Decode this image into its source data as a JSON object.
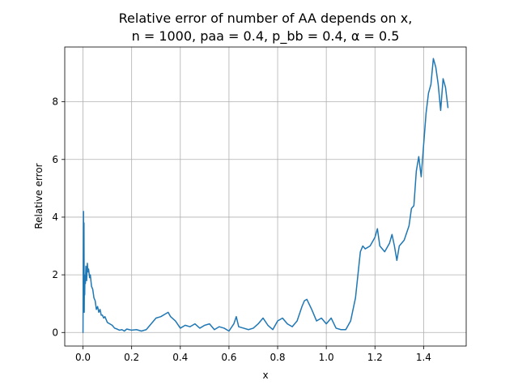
{
  "chart_data": {
    "type": "line",
    "title_line1": "Relative error of number of AA depends on x,",
    "title_line2": "n = 1000, paa = 0.4, p_bb = 0.4, α = 0.5",
    "xlabel": "x",
    "ylabel": "Relative error",
    "xlim": [
      -0.075,
      1.575
    ],
    "ylim": [
      -0.47,
      9.9
    ],
    "xticks": [
      0.0,
      0.2,
      0.4,
      0.6,
      0.8,
      1.0,
      1.2,
      1.4
    ],
    "xtick_labels": [
      "0.0",
      "0.2",
      "0.4",
      "0.6",
      "0.8",
      "1.0",
      "1.2",
      "1.4"
    ],
    "yticks": [
      0,
      2,
      4,
      6,
      8
    ],
    "ytick_labels": [
      "0",
      "2",
      "4",
      "6",
      "8"
    ],
    "grid": true,
    "line_color": "#1f77b4",
    "series": [
      {
        "x": [
          0.0,
          0.001,
          0.002,
          0.003,
          0.004,
          0.005,
          0.006,
          0.007,
          0.008,
          0.01,
          0.012,
          0.015,
          0.018,
          0.02,
          0.023,
          0.027,
          0.03,
          0.035,
          0.04,
          0.045,
          0.05,
          0.055,
          0.06,
          0.065,
          0.07,
          0.075,
          0.08,
          0.085,
          0.09,
          0.1,
          0.11,
          0.12,
          0.13,
          0.14,
          0.15,
          0.16,
          0.17,
          0.18,
          0.19,
          0.2,
          0.22,
          0.24,
          0.26,
          0.28,
          0.3,
          0.32,
          0.34,
          0.35,
          0.36,
          0.38,
          0.4,
          0.42,
          0.44,
          0.46,
          0.48,
          0.5,
          0.52,
          0.54,
          0.56,
          0.58,
          0.6,
          0.62,
          0.63,
          0.64,
          0.66,
          0.68,
          0.7,
          0.72,
          0.74,
          0.76,
          0.78,
          0.8,
          0.82,
          0.84,
          0.86,
          0.88,
          0.9,
          0.91,
          0.92,
          0.94,
          0.96,
          0.98,
          1.0,
          1.02,
          1.04,
          1.06,
          1.08,
          1.1,
          1.12,
          1.14,
          1.15,
          1.16,
          1.18,
          1.2,
          1.21,
          1.22,
          1.24,
          1.26,
          1.27,
          1.28,
          1.29,
          1.3,
          1.32,
          1.34,
          1.35,
          1.36,
          1.37,
          1.38,
          1.39,
          1.4,
          1.41,
          1.42,
          1.43,
          1.44,
          1.45,
          1.46,
          1.47,
          1.48,
          1.49,
          1.5
        ],
        "y": [
          0.0,
          2.5,
          4.2,
          1.0,
          3.8,
          0.7,
          2.0,
          1.3,
          1.9,
          1.7,
          2.3,
          1.8,
          2.4,
          2.1,
          2.2,
          1.9,
          2.0,
          1.6,
          1.5,
          1.2,
          1.1,
          0.8,
          0.9,
          0.7,
          0.8,
          0.6,
          0.6,
          0.5,
          0.55,
          0.35,
          0.3,
          0.25,
          0.15,
          0.12,
          0.08,
          0.1,
          0.05,
          0.12,
          0.1,
          0.08,
          0.1,
          0.05,
          0.1,
          0.3,
          0.5,
          0.55,
          0.65,
          0.7,
          0.55,
          0.4,
          0.15,
          0.25,
          0.2,
          0.3,
          0.15,
          0.25,
          0.3,
          0.1,
          0.2,
          0.15,
          0.05,
          0.3,
          0.55,
          0.2,
          0.15,
          0.1,
          0.15,
          0.3,
          0.5,
          0.25,
          0.1,
          0.4,
          0.5,
          0.3,
          0.2,
          0.4,
          0.9,
          1.1,
          1.15,
          0.8,
          0.4,
          0.5,
          0.3,
          0.5,
          0.15,
          0.1,
          0.1,
          0.4,
          1.2,
          2.8,
          3.0,
          2.9,
          3.0,
          3.3,
          3.6,
          3.0,
          2.8,
          3.1,
          3.4,
          3.0,
          2.5,
          3.0,
          3.2,
          3.7,
          4.3,
          4.4,
          5.6,
          6.1,
          5.4,
          6.5,
          7.6,
          8.3,
          8.6,
          9.5,
          9.2,
          8.6,
          7.7,
          8.8,
          8.5,
          7.8
        ]
      }
    ]
  }
}
